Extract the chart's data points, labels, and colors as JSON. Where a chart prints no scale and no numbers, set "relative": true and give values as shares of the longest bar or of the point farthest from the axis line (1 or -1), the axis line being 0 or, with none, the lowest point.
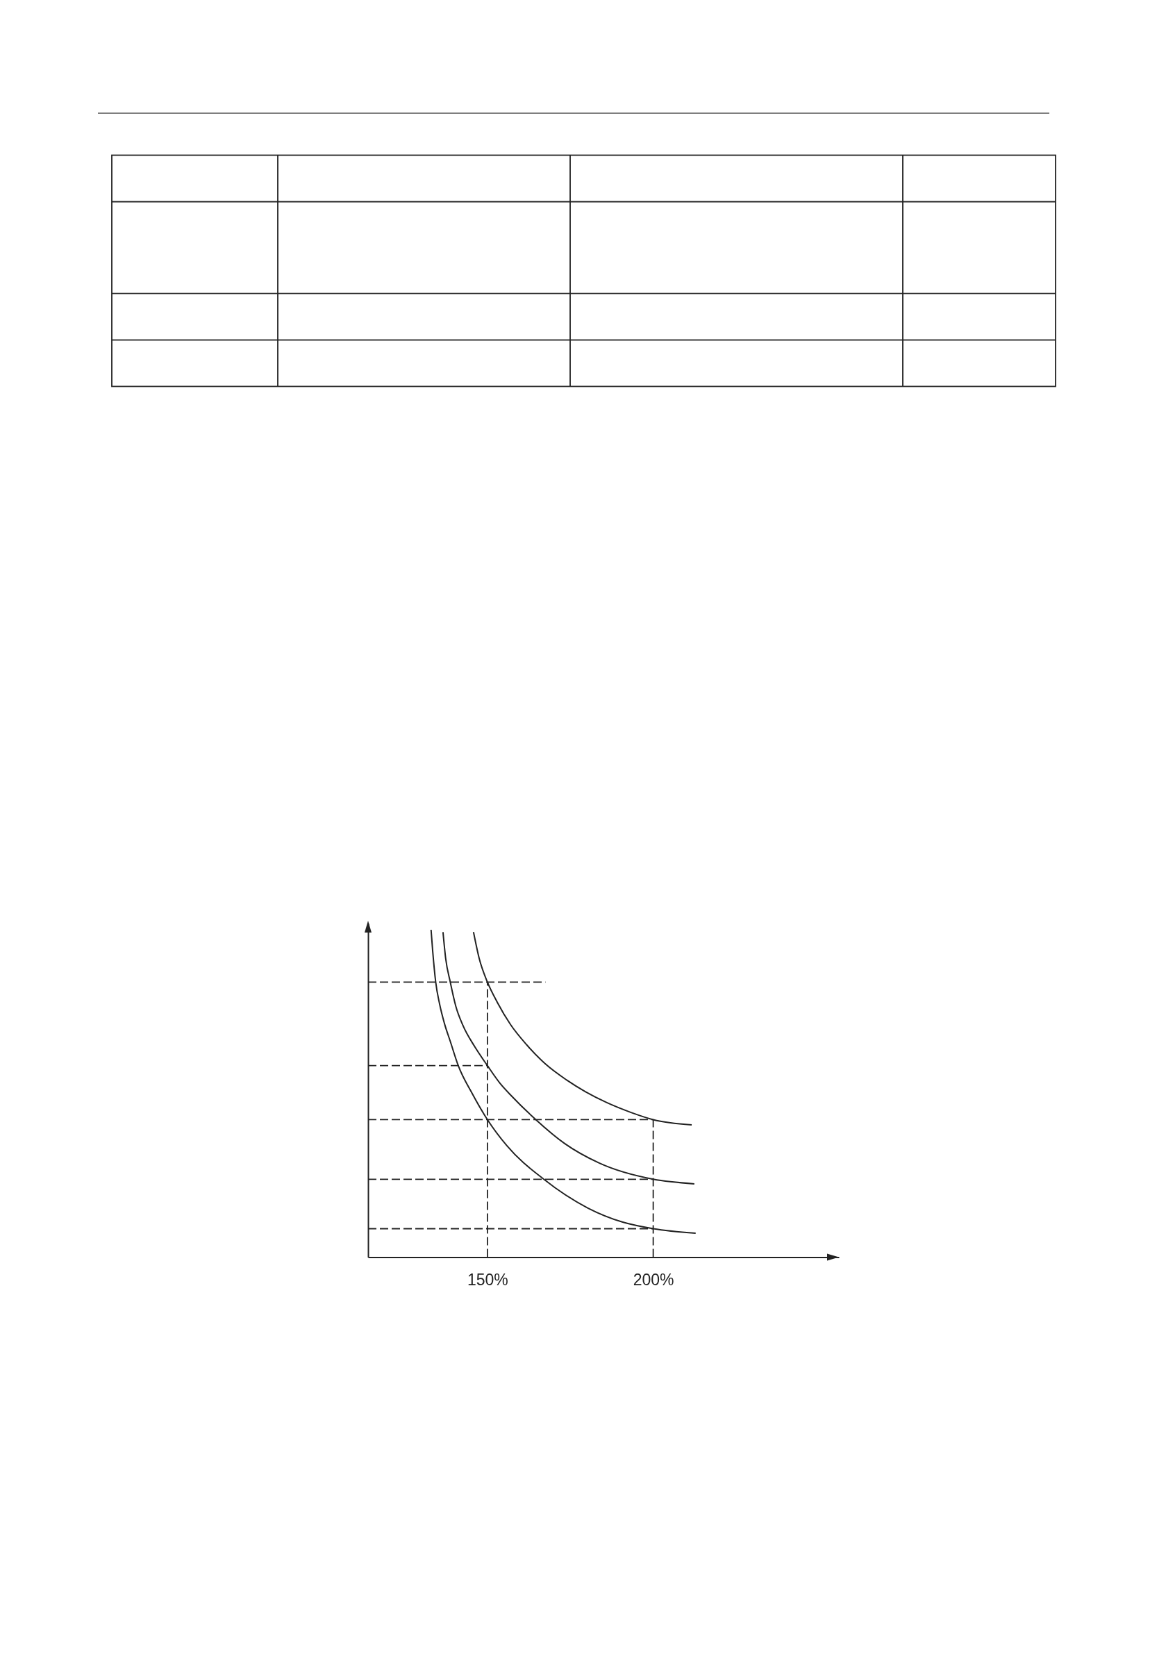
{
  "chart_data": {
    "type": "line",
    "relative": true,
    "xlim": [
      114,
      256
    ],
    "xticks": [
      {
        "value": 150,
        "label": "150%"
      },
      {
        "value": 200,
        "label": "200%"
      }
    ],
    "series": [
      {
        "color": "#222222",
        "x": [
          133,
          133.5,
          134.4,
          135.6,
          137,
          138.8,
          141.2,
          145.4,
          150,
          155.9,
          167,
          180.3,
          190.8,
          200,
          212.8
        ],
        "values": [
          1,
          0.934,
          0.84,
          0.772,
          0.715,
          0.659,
          0.585,
          0.5,
          0.42,
          0.34,
          0.238,
          0.15,
          0.107,
          0.087,
          0.073
        ]
      },
      {
        "color": "#222222",
        "x": [
          136.6,
          137.4,
          138.8,
          140.5,
          142.6,
          146.1,
          150,
          153.8,
          157.3,
          164.6,
          173.3,
          183.8,
          200,
          212.4
        ],
        "values": [
          0.993,
          0.913,
          0.84,
          0.765,
          0.708,
          0.644,
          0.585,
          0.531,
          0.492,
          0.42,
          0.347,
          0.287,
          0.238,
          0.224
        ]
      },
      {
        "color": "#222222",
        "x": [
          145.8,
          147.5,
          150,
          153,
          157,
          161.9,
          167.5,
          173.9,
          179.6,
          186,
          193.3,
          200,
          211.6
        ],
        "values": [
          0.993,
          0.913,
          0.84,
          0.778,
          0.71,
          0.648,
          0.59,
          0.541,
          0.505,
          0.472,
          0.442,
          0.42,
          0.404
        ]
      },
      {
        "color": "#222222",
        "line_style": "dashed",
        "x": [
          114,
          167.5
        ],
        "values": [
          0.84,
          0.84
        ]
      },
      {
        "color": "#222222",
        "line_style": "dashed",
        "x": [
          114,
          150
        ],
        "values": [
          0.585,
          0.585
        ]
      },
      {
        "color": "#222222",
        "line_style": "dashed",
        "x": [
          114,
          200
        ],
        "values": [
          0.42,
          0.42
        ]
      },
      {
        "color": "#222222",
        "line_style": "dashed",
        "x": [
          114,
          200
        ],
        "values": [
          0.238,
          0.238
        ]
      },
      {
        "color": "#222222",
        "line_style": "dashed",
        "x": [
          114,
          200
        ],
        "values": [
          0.087,
          0.087
        ]
      },
      {
        "color": "#222222",
        "line_style": "dashed",
        "x": [
          150,
          150
        ],
        "values": [
          0,
          0.84
        ]
      },
      {
        "color": "#222222",
        "line_style": "dashed",
        "x": [
          200,
          200
        ],
        "values": [
          0,
          0.42
        ]
      }
    ]
  }
}
